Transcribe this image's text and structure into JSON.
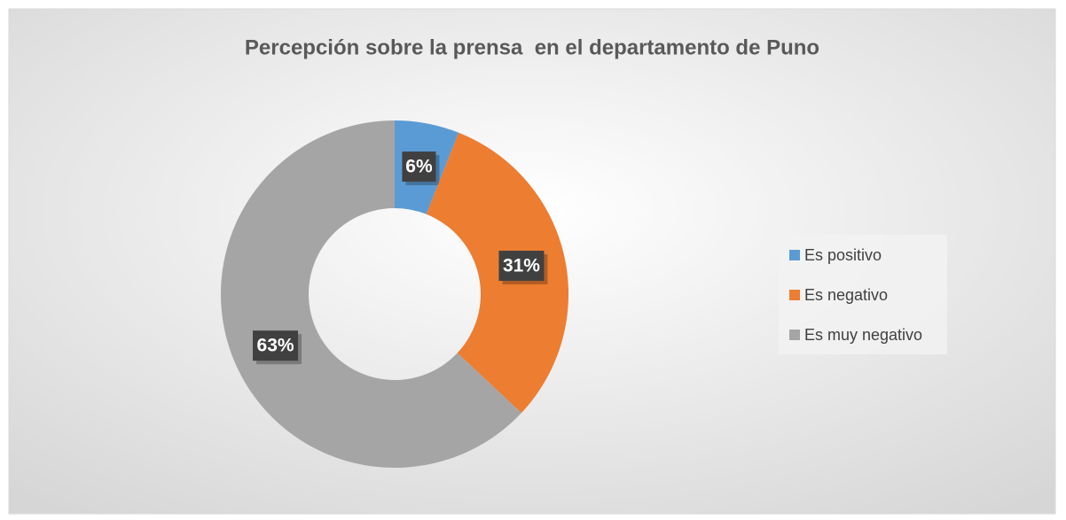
{
  "chart_data": {
    "type": "donut",
    "title": "Percepción sobre la prensa  en el departamento de Puno",
    "categories": [
      "Es positivo",
      "Es negativo",
      "Es muy negativo"
    ],
    "values": [
      6,
      31,
      63
    ],
    "value_labels": [
      "6%",
      "31%",
      "63%"
    ],
    "colors": [
      "#5b9bd5",
      "#ed7d31",
      "#a5a5a5"
    ],
    "legend": "right"
  }
}
